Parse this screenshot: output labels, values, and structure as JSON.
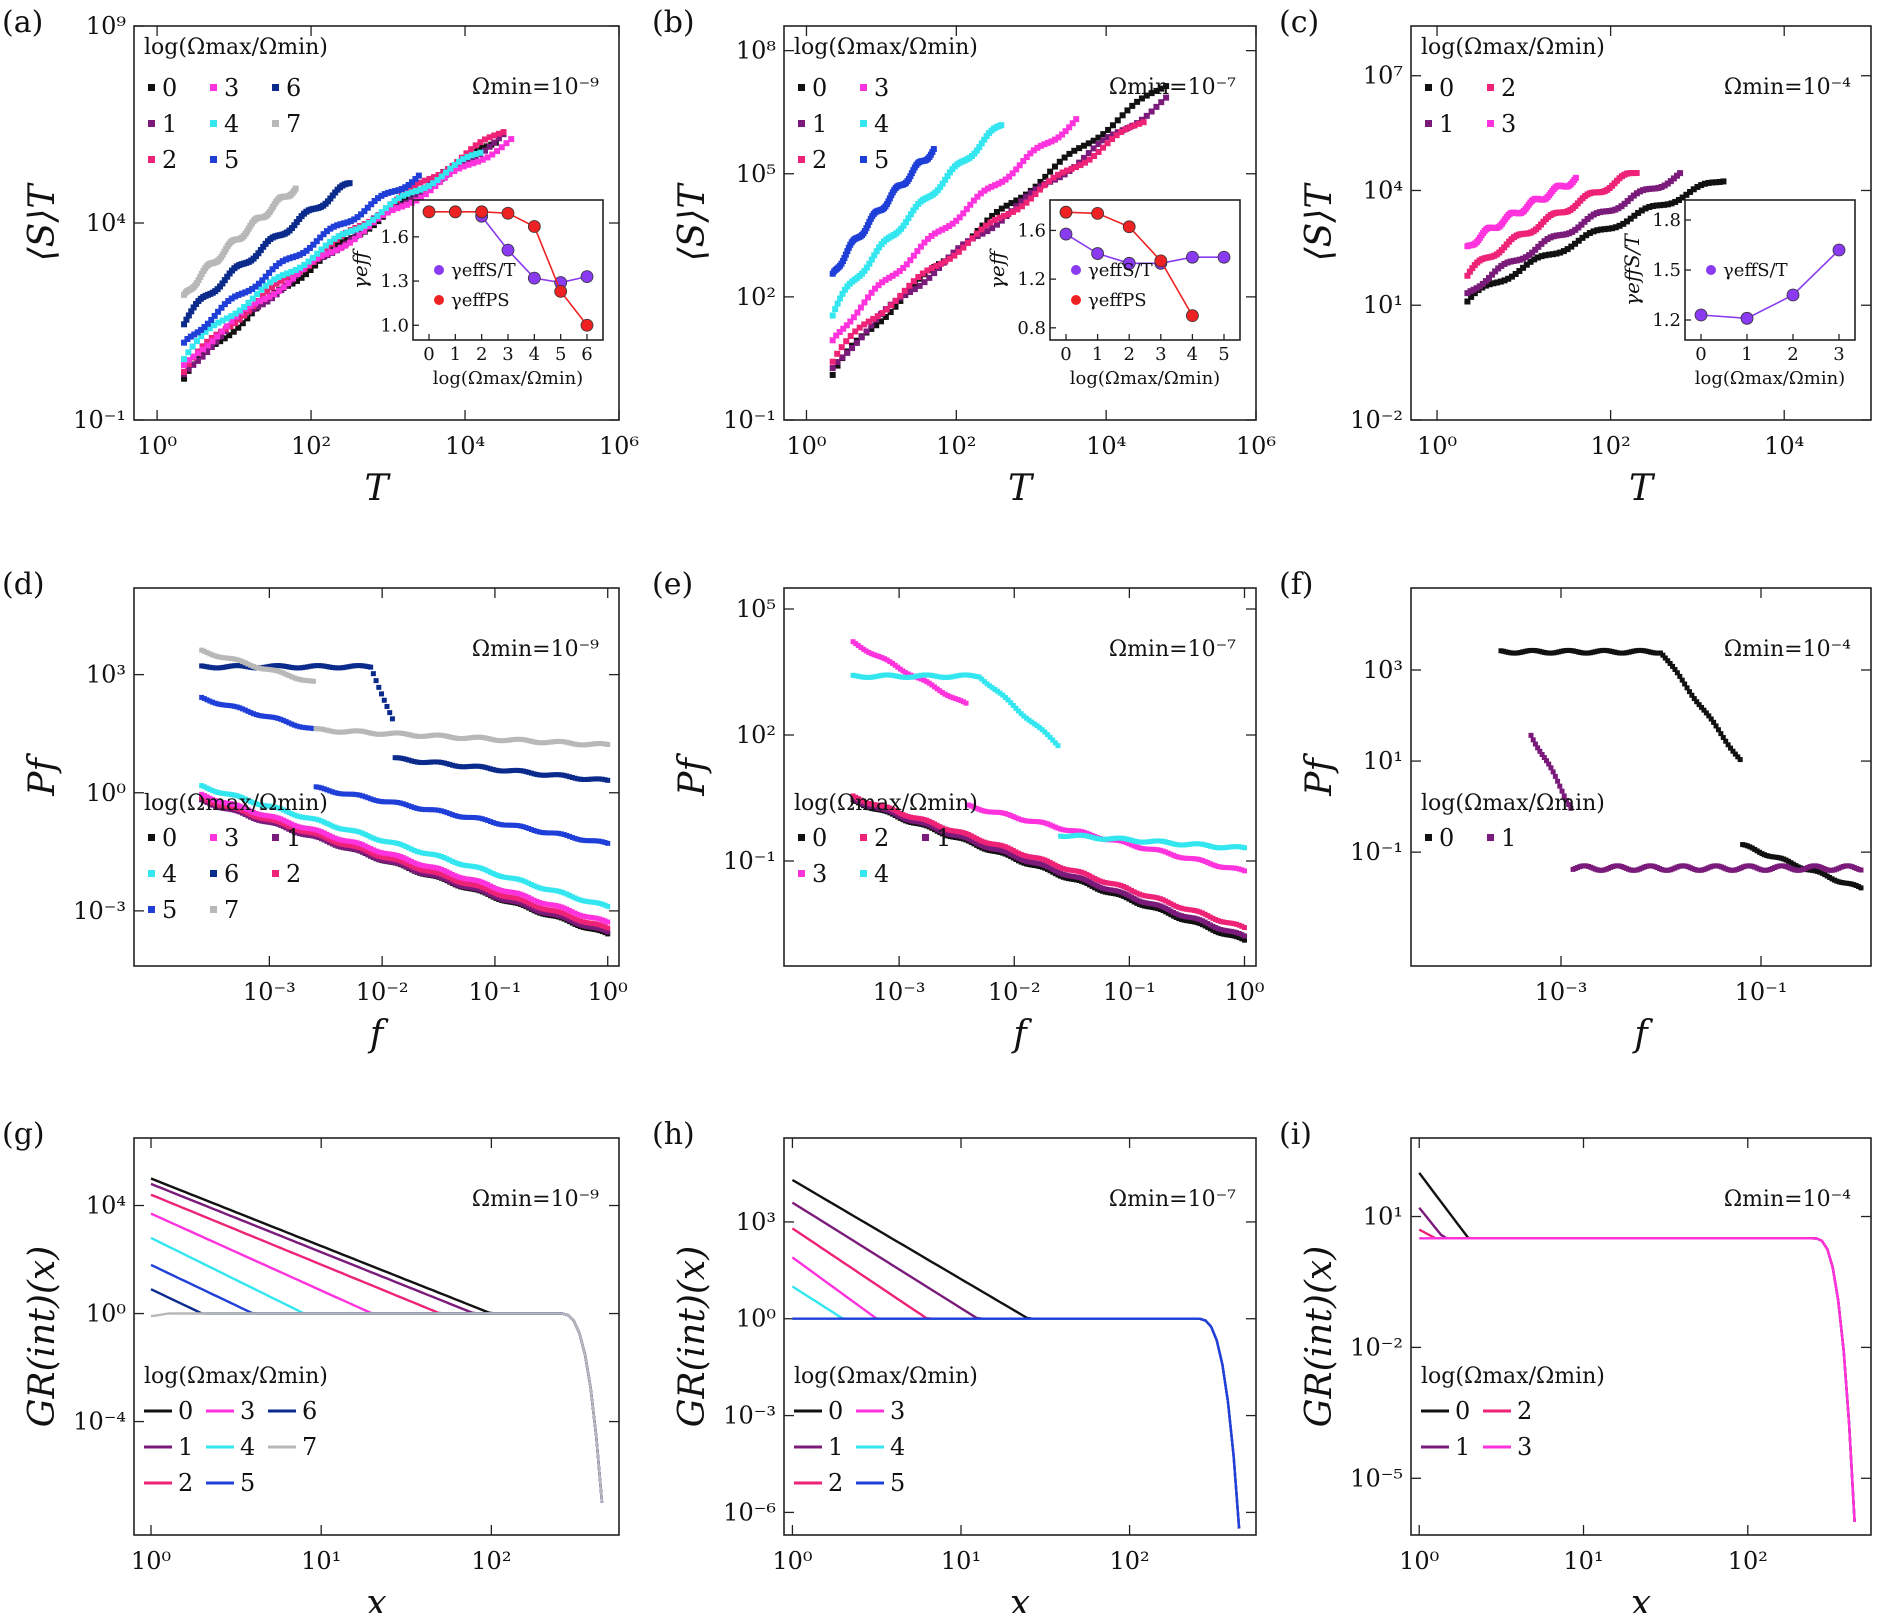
{
  "figure": {
    "panel_count": 9
  },
  "palette": {
    "0": "#111111",
    "1": "#7a1a7a",
    "2": "#ee2277",
    "3": "#ff33dd",
    "4": "#33e6f0",
    "5": "#1f3fd8",
    "6": "#0a2a8c",
    "7": "#b8b8b8",
    "inset_purple": "#8a3af0",
    "inset_red": "#ee2222"
  },
  "legend_title": "log(Ωmax/Ωmin)",
  "chart_data": [
    {
      "panel": "(a)",
      "type": "scatter",
      "scale": "loglog",
      "xlabel": "T",
      "ylabel": "⟨S⟩T",
      "xlim_exp": [
        -0.3,
        6
      ],
      "ylim_exp": [
        -1,
        9
      ],
      "x_ticks": [
        "10⁰",
        "10²",
        "10⁴",
        "10⁶"
      ],
      "x_tick_exp": [
        0,
        2,
        4,
        6
      ],
      "y_ticks": [
        "10⁻¹",
        "10⁴",
        "10⁹"
      ],
      "y_tick_exp": [
        -1,
        4,
        9
      ],
      "annotation": "Ωmin=10⁻⁹",
      "legend": [
        "0",
        "3",
        "6",
        "1",
        "4",
        "7",
        "2",
        "5"
      ],
      "series": [
        {
          "name": "0",
          "logx": [
            0.35,
            4.4
          ],
          "logy": [
            0.05,
            6.1
          ]
        },
        {
          "name": "1",
          "logx": [
            0.35,
            4.5
          ],
          "logy": [
            0.15,
            6.2
          ]
        },
        {
          "name": "2",
          "logx": [
            0.35,
            4.5
          ],
          "logy": [
            0.25,
            6.35
          ]
        },
        {
          "name": "3",
          "logx": [
            0.35,
            4.6
          ],
          "logy": [
            0.35,
            6.1
          ]
        },
        {
          "name": "4",
          "logx": [
            0.35,
            4.2
          ],
          "logy": [
            0.6,
            5.8
          ]
        },
        {
          "name": "5",
          "logx": [
            0.35,
            3.4
          ],
          "logy": [
            0.9,
            5.2
          ]
        },
        {
          "name": "6",
          "logx": [
            0.35,
            2.5
          ],
          "logy": [
            1.5,
            5.0
          ]
        },
        {
          "name": "7",
          "logx": [
            0.35,
            1.8
          ],
          "logy": [
            2.1,
            4.9
          ]
        }
      ],
      "inset": {
        "xlabel": "log(Ωmax/Ωmin)",
        "ylabel": "γeff",
        "x_ticks": [
          "0",
          "1",
          "2",
          "3",
          "4",
          "5",
          "6"
        ],
        "y_ticks": [
          "1.0",
          "1.3",
          "1.6"
        ],
        "ylim": [
          0.9,
          1.85
        ],
        "series": [
          {
            "name": "γeffS/T",
            "x": [
              2,
              3,
              4,
              5,
              6
            ],
            "y": [
              1.74,
              1.51,
              1.32,
              1.29,
              1.33
            ]
          },
          {
            "name": "γeffPS",
            "x": [
              0,
              1,
              2,
              3,
              4,
              5,
              6
            ],
            "y": [
              1.77,
              1.77,
              1.77,
              1.76,
              1.67,
              1.23,
              1.0
            ]
          }
        ]
      }
    },
    {
      "panel": "(b)",
      "type": "scatter",
      "scale": "loglog",
      "xlabel": "T",
      "ylabel": "⟨S⟩T",
      "xlim_exp": [
        -0.3,
        6
      ],
      "ylim_exp": [
        -1,
        8.6
      ],
      "x_ticks": [
        "10⁰",
        "10²",
        "10⁴",
        "10⁶"
      ],
      "x_tick_exp": [
        0,
        2,
        4,
        6
      ],
      "y_ticks": [
        "10⁻¹",
        "10²",
        "10⁵",
        "10⁸"
      ],
      "y_tick_exp": [
        -1,
        2,
        5,
        8
      ],
      "annotation": "Ωmin=10⁻⁷",
      "legend": [
        "0",
        "3",
        "1",
        "4",
        "2",
        "5"
      ],
      "series": [
        {
          "name": "0",
          "logx": [
            0.35,
            4.8
          ],
          "logy": [
            0.1,
            7.2
          ]
        },
        {
          "name": "1",
          "logx": [
            0.35,
            4.8
          ],
          "logy": [
            0.25,
            6.8
          ]
        },
        {
          "name": "2",
          "logx": [
            0.35,
            4.5
          ],
          "logy": [
            0.45,
            6.3
          ]
        },
        {
          "name": "3",
          "logx": [
            0.35,
            3.6
          ],
          "logy": [
            0.9,
            6.3
          ]
        },
        {
          "name": "4",
          "logx": [
            0.35,
            2.6
          ],
          "logy": [
            1.6,
            6.2
          ]
        },
        {
          "name": "5",
          "logx": [
            0.35,
            1.7
          ],
          "logy": [
            2.5,
            5.6
          ]
        }
      ],
      "inset": {
        "xlabel": "log(Ωmax/Ωmin)",
        "ylabel": "γeff",
        "x_ticks": [
          "0",
          "1",
          "2",
          "3",
          "4",
          "5"
        ],
        "y_ticks": [
          "0.8",
          "1.2",
          "1.6"
        ],
        "ylim": [
          0.7,
          1.85
        ],
        "series": [
          {
            "name": "γeffS/T",
            "x": [
              0,
              1,
              2,
              3,
              4,
              5
            ],
            "y": [
              1.57,
              1.41,
              1.33,
              1.33,
              1.38,
              1.38
            ]
          },
          {
            "name": "γeffPS",
            "x": [
              0,
              1,
              2,
              3,
              4
            ],
            "y": [
              1.75,
              1.74,
              1.63,
              1.35,
              0.9
            ]
          }
        ]
      }
    },
    {
      "panel": "(c)",
      "type": "scatter",
      "scale": "loglog",
      "xlabel": "T",
      "ylabel": "⟨S⟩T",
      "xlim_exp": [
        -0.3,
        5
      ],
      "ylim_exp": [
        -2,
        8.3
      ],
      "x_ticks": [
        "10⁰",
        "10²",
        "10⁴"
      ],
      "x_tick_exp": [
        0,
        2,
        4
      ],
      "y_ticks": [
        "10⁻²",
        "10¹",
        "10⁴",
        "10⁷"
      ],
      "y_tick_exp": [
        -2,
        1,
        4,
        7
      ],
      "annotation": "Ωmin=10⁻⁴",
      "legend": [
        "0",
        "2",
        "1",
        "3"
      ],
      "series": [
        {
          "name": "0",
          "logx": [
            0.35,
            3.3
          ],
          "logy": [
            1.1,
            4.3
          ]
        },
        {
          "name": "1",
          "logx": [
            0.35,
            2.8
          ],
          "logy": [
            1.3,
            4.4
          ]
        },
        {
          "name": "2",
          "logx": [
            0.35,
            2.3
          ],
          "logy": [
            1.8,
            4.5
          ]
        },
        {
          "name": "3",
          "logx": [
            0.35,
            1.6
          ],
          "logy": [
            2.5,
            4.3
          ]
        }
      ],
      "inset": {
        "xlabel": "log(Ωmax/Ωmin)",
        "ylabel": "γeffS/T",
        "x_ticks": [
          "0",
          "1",
          "2",
          "3"
        ],
        "y_ticks": [
          "1.2",
          "1.5",
          "1.8"
        ],
        "ylim": [
          1.08,
          1.92
        ],
        "series": [
          {
            "name": "γeffS/T",
            "x": [
              0,
              1,
              2,
              3
            ],
            "y": [
              1.23,
              1.21,
              1.35,
              1.62
            ]
          }
        ]
      }
    },
    {
      "panel": "(d)",
      "type": "scatter",
      "scale": "loglog",
      "xlabel": "f",
      "ylabel": "Pf",
      "xlim_exp": [
        -4.2,
        0.1
      ],
      "ylim_exp": [
        -4.4,
        5.2
      ],
      "x_ticks": [
        "10⁻³",
        "10⁻²",
        "10⁻¹",
        "10⁰"
      ],
      "x_tick_exp": [
        -3,
        -2,
        -1,
        0
      ],
      "y_ticks": [
        "10⁻³",
        "10⁰",
        "10³"
      ],
      "y_tick_exp": [
        -3,
        0,
        3
      ],
      "annotation": "Ωmin=10⁻⁹",
      "legend": [
        "0",
        "3",
        "1",
        "4",
        "6",
        "2",
        "5",
        "7"
      ]
    },
    {
      "panel": "(e)",
      "type": "scatter",
      "scale": "loglog",
      "xlabel": "f",
      "ylabel": "Pf",
      "xlim_exp": [
        -4.0,
        0.1
      ],
      "ylim_exp": [
        -3.5,
        5.5
      ],
      "x_ticks": [
        "10⁻³",
        "10⁻²",
        "10⁻¹",
        "10⁰"
      ],
      "x_tick_exp": [
        -3,
        -2,
        -1,
        0
      ],
      "y_ticks": [
        "10⁻¹",
        "10²",
        "10⁵"
      ],
      "y_tick_exp": [
        -1,
        2,
        5
      ],
      "annotation": "Ωmin=10⁻⁷",
      "legend": [
        "0",
        "2",
        "1",
        "3",
        "4"
      ]
    },
    {
      "panel": "(f)",
      "type": "scatter",
      "scale": "loglog",
      "xlabel": "f",
      "ylabel": "Pf",
      "xlim_exp": [
        -4.5,
        0.1
      ],
      "ylim_exp": [
        -3.5,
        4.8
      ],
      "x_ticks": [
        "10⁻³",
        "10⁻¹"
      ],
      "x_tick_exp": [
        -3,
        -1
      ],
      "y_ticks": [
        "10⁻¹",
        "10¹",
        "10³"
      ],
      "y_tick_exp": [
        -1,
        1,
        3
      ],
      "annotation": "Ωmin=10⁻⁴",
      "legend": [
        "0",
        "1"
      ]
    },
    {
      "panel": "(g)",
      "type": "line",
      "scale": "loglog",
      "xlabel": "x",
      "ylabel": "GR(int)(x)",
      "xlim_exp": [
        -0.1,
        2.75
      ],
      "ylim_exp": [
        -8.2,
        6.5
      ],
      "x_ticks": [
        "10⁰",
        "10¹",
        "10²"
      ],
      "x_tick_exp": [
        0,
        1,
        2
      ],
      "y_ticks": [
        "10⁻⁴",
        "10⁰",
        "10⁴"
      ],
      "y_tick_exp": [
        -4,
        0,
        4
      ],
      "annotation": "Ωmin=10⁻⁹",
      "legend": [
        "0",
        "3",
        "6",
        "1",
        "4",
        "7",
        "2",
        "5"
      ]
    },
    {
      "panel": "(h)",
      "type": "line",
      "scale": "loglog",
      "xlabel": "x",
      "ylabel": "GR(int)(x)",
      "xlim_exp": [
        -0.05,
        2.75
      ],
      "ylim_exp": [
        -6.7,
        5.6
      ],
      "x_ticks": [
        "10⁰",
        "10¹",
        "10²"
      ],
      "x_tick_exp": [
        0,
        1,
        2
      ],
      "y_ticks": [
        "10⁻⁶",
        "10⁻³",
        "10⁰",
        "10³"
      ],
      "y_tick_exp": [
        -6,
        -3,
        0,
        3
      ],
      "annotation": "Ωmin=10⁻⁷",
      "legend": [
        "0",
        "3",
        "1",
        "4",
        "2",
        "5"
      ]
    },
    {
      "panel": "(i)",
      "type": "line",
      "scale": "loglog",
      "xlabel": "x",
      "ylabel": "GR(int)(x)",
      "xlim_exp": [
        -0.05,
        2.75
      ],
      "ylim_exp": [
        -6.3,
        2.8
      ],
      "x_ticks": [
        "10⁰",
        "10¹",
        "10²"
      ],
      "x_tick_exp": [
        0,
        1,
        2
      ],
      "y_ticks": [
        "10⁻⁵",
        "10⁻²",
        "10¹"
      ],
      "y_tick_exp": [
        -5,
        -2,
        1
      ],
      "annotation": "Ωmin=10⁻⁴",
      "legend": [
        "0",
        "2",
        "1",
        "3"
      ]
    }
  ]
}
